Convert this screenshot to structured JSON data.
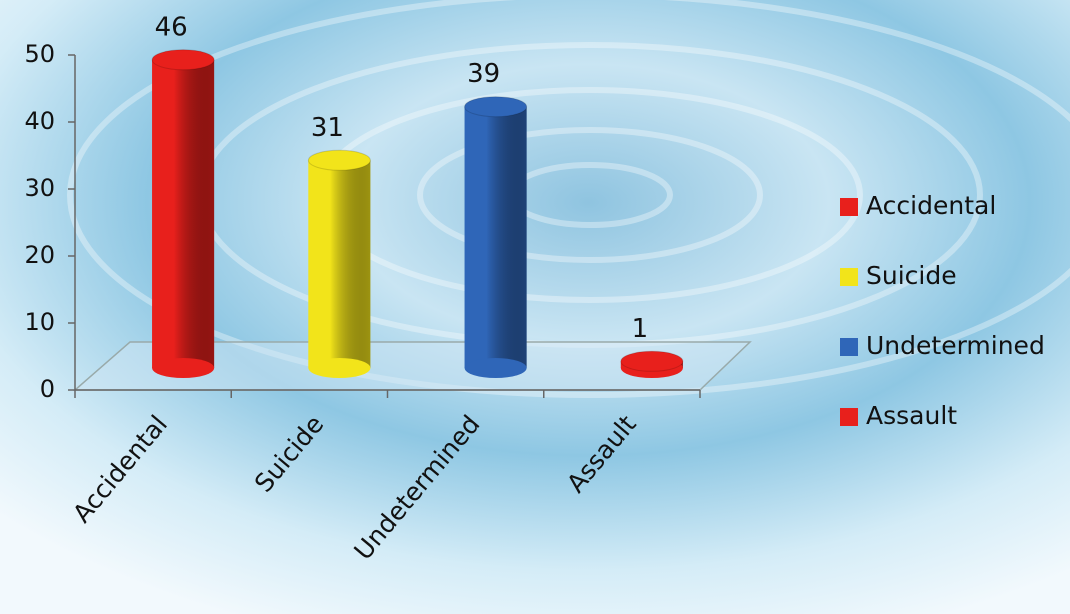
{
  "chart_data": {
    "type": "bar",
    "categories": [
      "Accidental",
      "Suicide",
      "Undetermined",
      "Assault"
    ],
    "values": [
      46,
      31,
      39,
      1
    ],
    "colors": [
      "#e8201c",
      "#f2e41a",
      "#2f66b8",
      "#e8201c"
    ],
    "ylim": [
      0,
      50
    ],
    "yticks": [
      0,
      10,
      20,
      30,
      40,
      50
    ],
    "legend": "right"
  }
}
